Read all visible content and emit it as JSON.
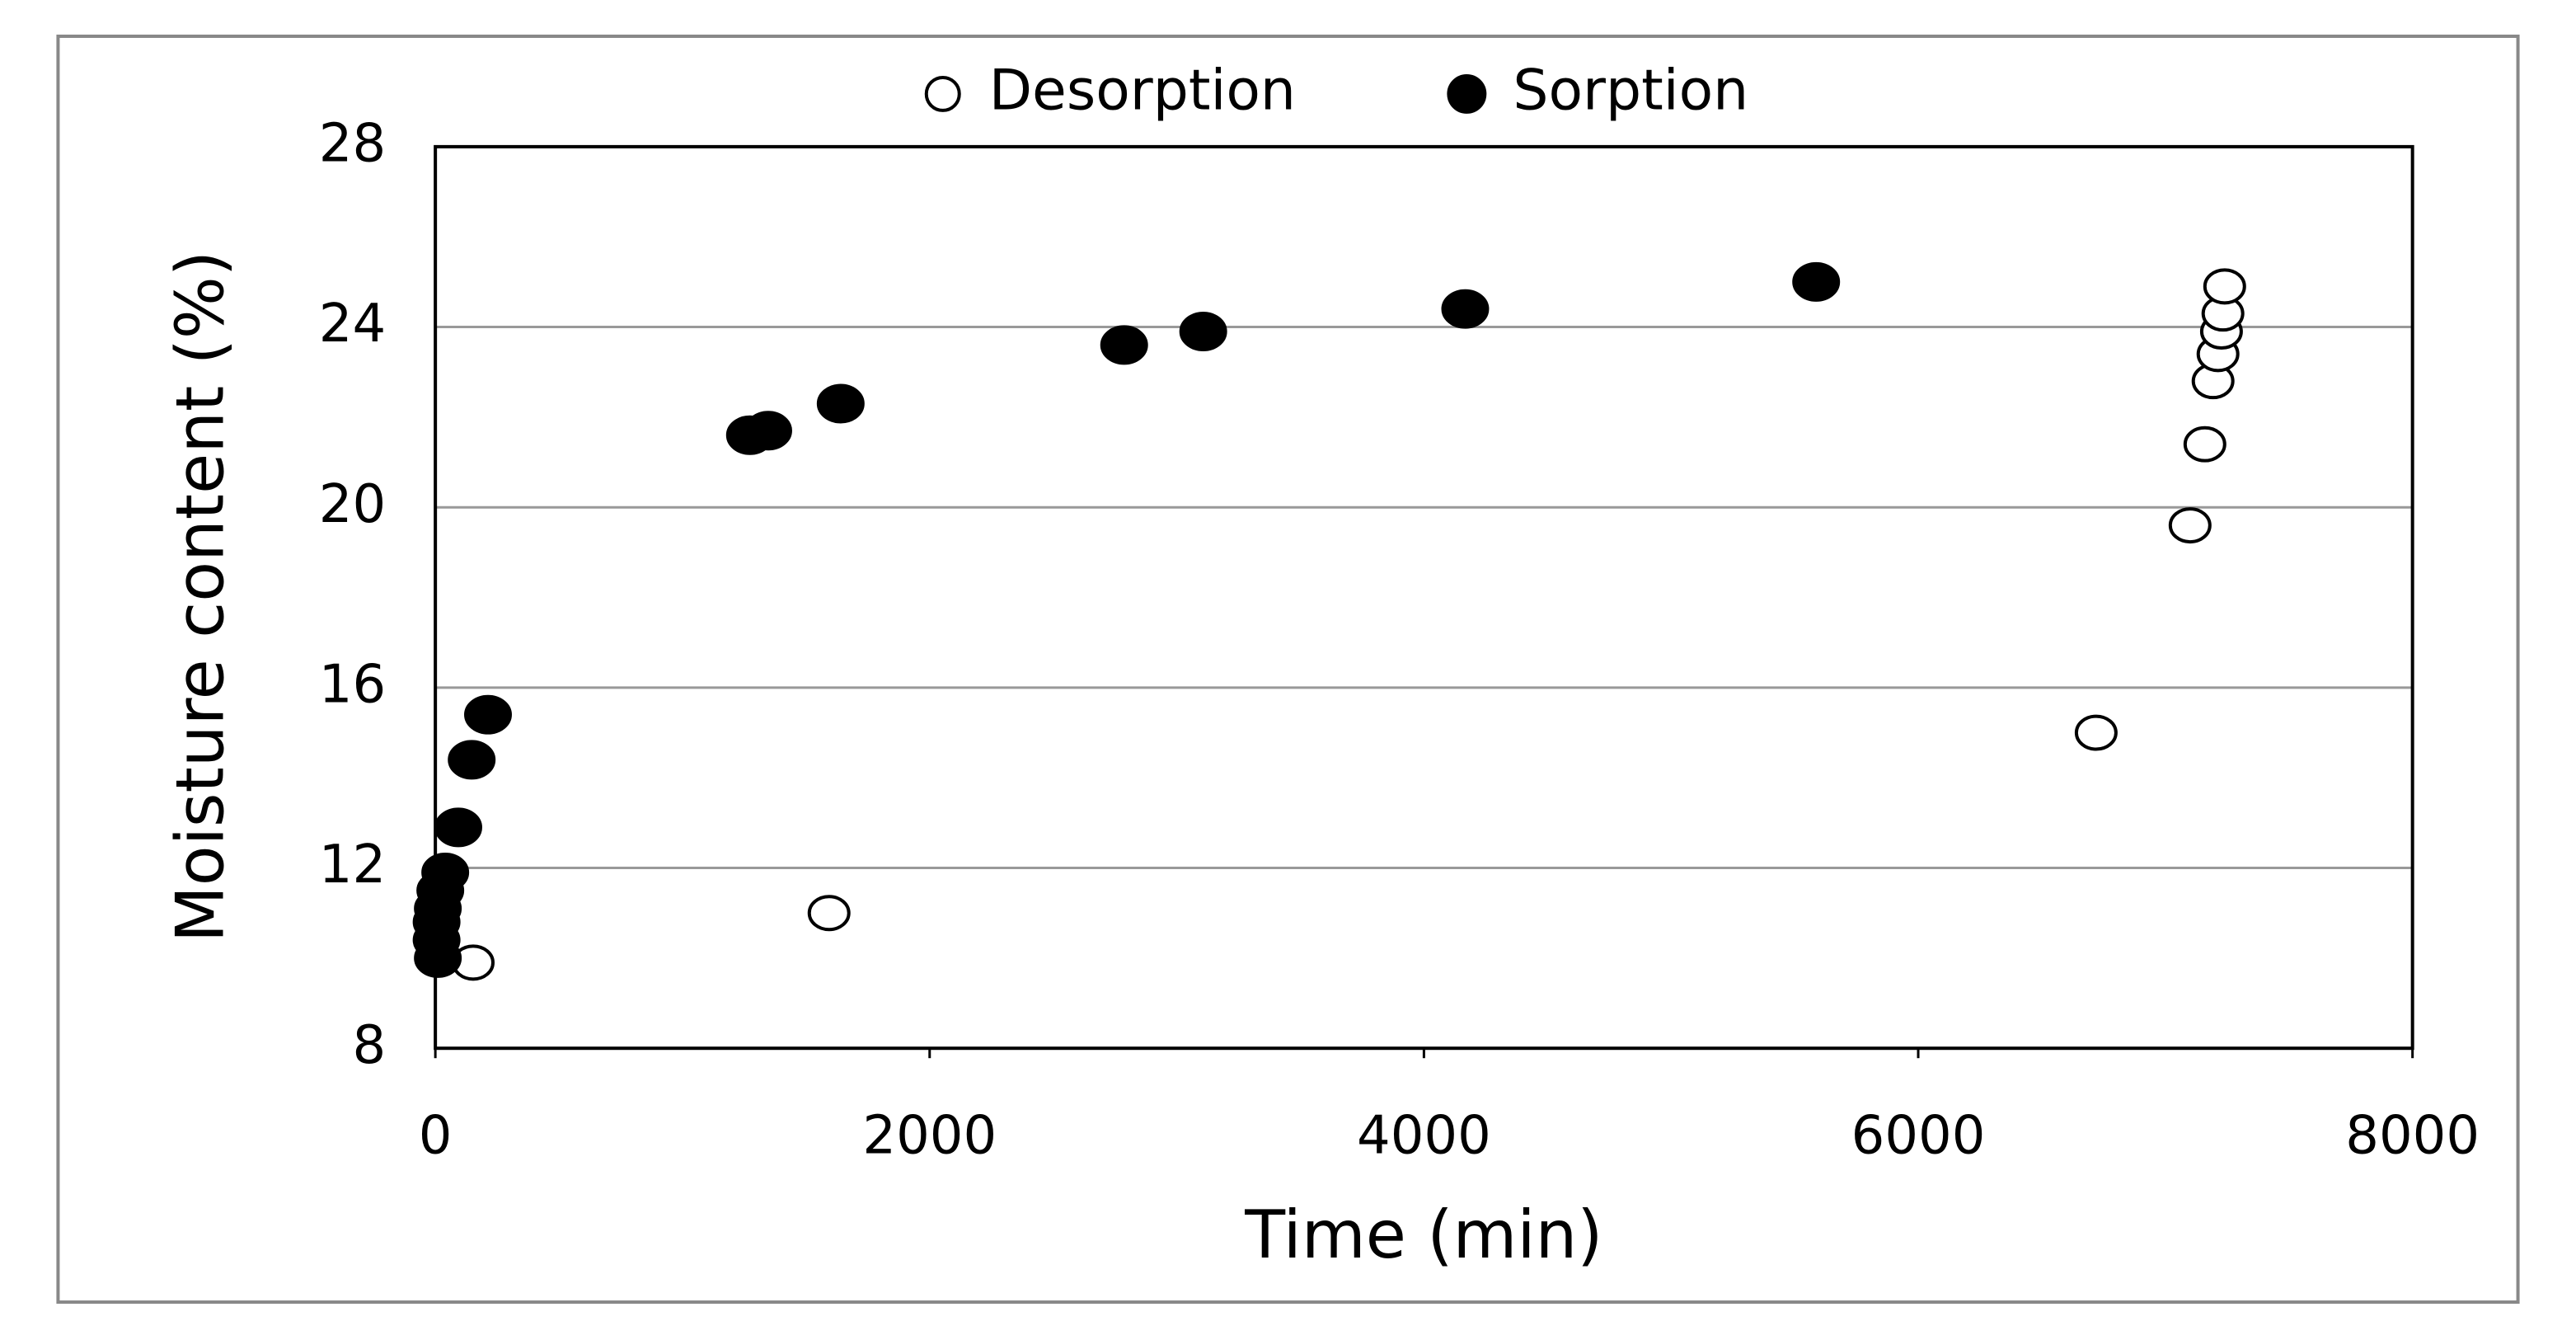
{
  "chart_data": {
    "type": "scatter",
    "x_label": "Time (min)",
    "y_label": "Moisture content (%)",
    "xlim": [
      0,
      8000
    ],
    "xticks": [
      0,
      2000,
      4000,
      6000,
      8000
    ],
    "ylim": [
      8,
      28
    ],
    "yticks": [
      8,
      12,
      16,
      20,
      24,
      28
    ],
    "grid": true,
    "legend": "top",
    "series": [
      {
        "name": "Desorption",
        "color": "#000000",
        "marker": "open",
        "x": [
          153,
          1593,
          6720,
          7100,
          7160,
          7193,
          7213,
          7227,
          7233,
          7240
        ],
        "values": [
          9.9,
          11.0,
          15.0,
          19.6,
          21.4,
          22.8,
          23.4,
          23.9,
          24.3,
          24.9
        ]
      },
      {
        "name": "Sorption",
        "color": "#000000",
        "marker": "filled",
        "x": [
          10,
          5,
          5,
          10,
          20,
          40,
          93,
          147,
          213,
          1273,
          1347,
          1640,
          2787,
          3107,
          4167,
          5587
        ],
        "values": [
          10.0,
          10.4,
          10.8,
          11.1,
          11.5,
          11.9,
          12.9,
          14.4,
          15.4,
          21.6,
          21.7,
          22.3,
          23.6,
          23.9,
          24.4,
          25.0
        ]
      }
    ]
  }
}
